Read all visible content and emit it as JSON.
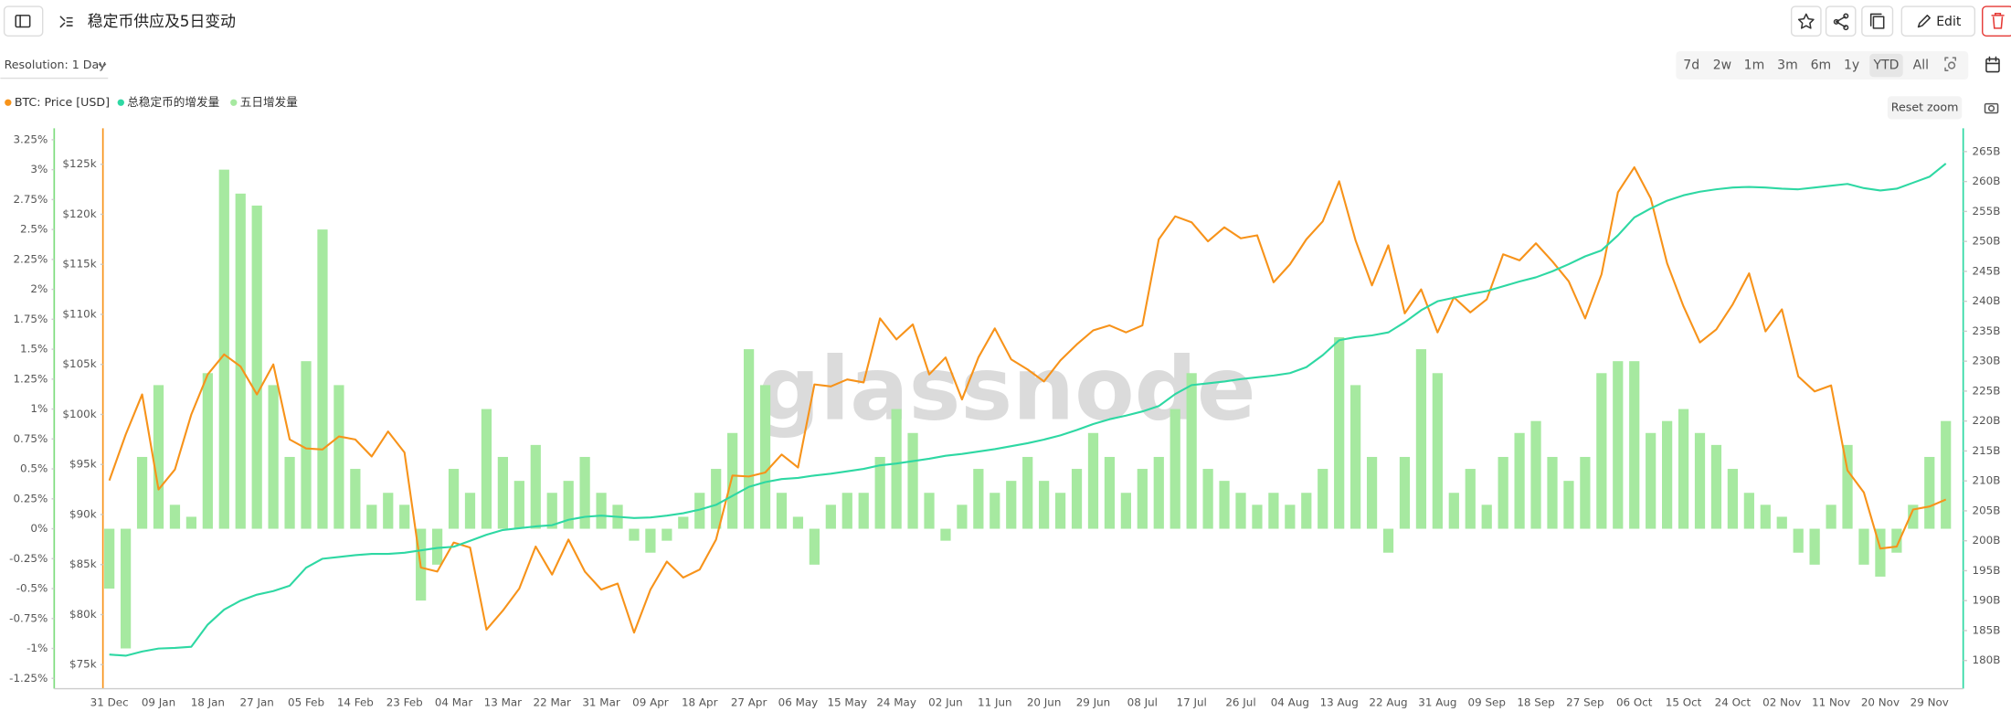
{
  "header": {
    "title": "稳定币供应及5日变动",
    "edit": "Edit",
    "resolution": "Resolution: 1 Day",
    "ranges": [
      "7d",
      "2w",
      "1m",
      "3m",
      "6m",
      "1y",
      "YTD",
      "All"
    ],
    "selected_range": 6,
    "reset_zoom": "Reset zoom",
    "watermark": "glassnode"
  },
  "chart_data": {
    "type": "combo",
    "grid": false,
    "categories": [
      "31 Dec",
      null,
      null,
      "09 Jan",
      null,
      null,
      "18 Jan",
      null,
      null,
      "27 Jan",
      null,
      null,
      "05 Feb",
      null,
      null,
      "14 Feb",
      null,
      null,
      "23 Feb",
      null,
      null,
      "04 Mar",
      null,
      null,
      "13 Mar",
      null,
      null,
      "22 Mar",
      null,
      null,
      "31 Mar",
      null,
      null,
      "09 Apr",
      null,
      null,
      "18 Apr",
      null,
      null,
      "27 Apr",
      null,
      null,
      "06 May",
      null,
      null,
      "15 May",
      null,
      null,
      "24 May",
      null,
      null,
      "02 Jun",
      null,
      null,
      "11 Jun",
      null,
      null,
      "20 Jun",
      null,
      null,
      "29 Jun",
      null,
      null,
      "08 Jul",
      null,
      null,
      "17 Jul",
      null,
      null,
      "26 Jul",
      null,
      null,
      "04 Aug",
      null,
      null,
      "13 Aug",
      null,
      null,
      "22 Aug",
      null,
      null,
      "31 Aug",
      null,
      null,
      "09 Sep",
      null,
      null,
      "18 Sep",
      null,
      null,
      "27 Sep",
      null,
      null,
      "06 Oct",
      null,
      null,
      "15 Oct",
      null,
      null,
      "24 Oct",
      null,
      null,
      "02 Nov",
      null,
      null,
      "11 Nov",
      null,
      null,
      "20 Nov",
      null,
      null,
      "29 Nov",
      null
    ],
    "ylim": [
      72.6,
      128.6
    ],
    "yticks": [
      {
        "value": 75,
        "label": "$75k"
      },
      {
        "value": 80,
        "label": "$80k"
      },
      {
        "value": 85,
        "label": "$85k"
      },
      {
        "value": 90,
        "label": "$90k"
      },
      {
        "value": 95,
        "label": "$95k"
      },
      {
        "value": 100,
        "label": "$100k"
      },
      {
        "value": 105,
        "label": "$105k"
      },
      {
        "value": 110,
        "label": "$110k"
      },
      {
        "value": 115,
        "label": "$115k"
      },
      {
        "value": 120,
        "label": "$120k"
      },
      {
        "value": 125,
        "label": "$125k"
      }
    ],
    "y2lim": [
      175.3,
      268.9
    ],
    "y2ticks": [
      {
        "value": 180,
        "label": "180B"
      },
      {
        "value": 185,
        "label": "185B"
      },
      {
        "value": 190,
        "label": "190B"
      },
      {
        "value": 195,
        "label": "195B"
      },
      {
        "value": 200,
        "label": "200B"
      },
      {
        "value": 205,
        "label": "205B"
      },
      {
        "value": 210,
        "label": "210B"
      },
      {
        "value": 215,
        "label": "215B"
      },
      {
        "value": 220,
        "label": "220B"
      },
      {
        "value": 225,
        "label": "225B"
      },
      {
        "value": 230,
        "label": "230B"
      },
      {
        "value": 235,
        "label": "235B"
      },
      {
        "value": 240,
        "label": "240B"
      },
      {
        "value": 245,
        "label": "245B"
      },
      {
        "value": 250,
        "label": "250B"
      },
      {
        "value": 255,
        "label": "255B"
      },
      {
        "value": 260,
        "label": "260B"
      },
      {
        "value": 265,
        "label": "265B"
      }
    ],
    "y3lim": [
      -1.336,
      3.346
    ],
    "y3ticks": [
      {
        "value": -1.25,
        "label": "-1.25%"
      },
      {
        "value": -1,
        "label": "-1%"
      },
      {
        "value": -0.75,
        "label": "-0.75%"
      },
      {
        "value": -0.5,
        "label": "-0.5%"
      },
      {
        "value": -0.25,
        "label": "-0.25%"
      },
      {
        "value": 0,
        "label": "0%"
      },
      {
        "value": 0.25,
        "label": "0.25%"
      },
      {
        "value": 0.5,
        "label": "0.5%"
      },
      {
        "value": 0.75,
        "label": "0.75%"
      },
      {
        "value": 1,
        "label": "1%"
      },
      {
        "value": 1.25,
        "label": "1.25%"
      },
      {
        "value": 1.5,
        "label": "1.5%"
      },
      {
        "value": 1.75,
        "label": "1.75%"
      },
      {
        "value": 2,
        "label": "2%"
      },
      {
        "value": 2.25,
        "label": "2.25%"
      },
      {
        "value": 2.5,
        "label": "2.5%"
      },
      {
        "value": 2.75,
        "label": "2.75%"
      },
      {
        "value": 3,
        "label": "3%"
      },
      {
        "value": 3.25,
        "label": "3.25%"
      }
    ],
    "series": [
      {
        "name": "BTC: Price [USD]",
        "type": "line",
        "axis": "y",
        "color": "#f7931a",
        "values": [
          93.4,
          98,
          102,
          92.5,
          94.5,
          100,
          104,
          106,
          104.8,
          102,
          105,
          97.5,
          96.6,
          96.5,
          97.8,
          97.5,
          95.8,
          98.3,
          96.2,
          84.7,
          84.3,
          87.2,
          86.7,
          78.5,
          80.4,
          82.6,
          86.8,
          84,
          87.5,
          84.3,
          82.5,
          83.1,
          78.2,
          82.5,
          85.3,
          83.7,
          84.5,
          87.5,
          93.9,
          93.8,
          94.2,
          96,
          94.7,
          103,
          102.8,
          103.5,
          103.2,
          109.6,
          107.5,
          109,
          104,
          105.7,
          101.5,
          105.7,
          108.6,
          105.5,
          104.5,
          103.3,
          105.4,
          107,
          108.4,
          108.9,
          108.2,
          108.9,
          117.5,
          119.8,
          119.2,
          117.3,
          118.7,
          117.6,
          117.9,
          113.2,
          115,
          117.5,
          119.3,
          123.3,
          117.4,
          112.9,
          116.9,
          110.1,
          112.5,
          108.2,
          111.7,
          110.2,
          111.5,
          116,
          115.4,
          117.1,
          115.3,
          113.3,
          109.6,
          114,
          122.2,
          124.7,
          121.6,
          115.1,
          110.8,
          107.2,
          108.5,
          111,
          114.1,
          108.3,
          110.5,
          103.8,
          102.3,
          102.9,
          94.4,
          92.2,
          86.6,
          86.8,
          90.5,
          90.8,
          91.5
        ]
      },
      {
        "name": "总稳定币的增发量",
        "type": "line",
        "axis": "y2",
        "color": "#2ed8a3",
        "values": [
          181,
          180.8,
          181.5,
          182,
          182.1,
          182.3,
          186,
          188.5,
          190,
          191,
          191.6,
          192.5,
          195.5,
          197,
          197.3,
          197.6,
          197.8,
          197.8,
          198,
          198.4,
          198.8,
          199,
          200,
          201,
          201.8,
          202.1,
          202.4,
          202.6,
          203.5,
          204,
          204.2,
          204,
          203.8,
          203.9,
          204.2,
          204.6,
          205.2,
          206,
          207.5,
          209,
          209.8,
          210.3,
          210.5,
          210.9,
          211.2,
          211.6,
          212,
          212.6,
          212.9,
          213.3,
          213.7,
          214.2,
          214.5,
          214.9,
          215.3,
          215.8,
          216.3,
          216.9,
          217.6,
          218.5,
          219.5,
          220.3,
          220.9,
          221.6,
          222.5,
          224.5,
          226,
          226.3,
          226.6,
          227,
          227.3,
          227.6,
          228,
          229,
          231,
          233.5,
          234,
          234.3,
          234.8,
          236.5,
          238.5,
          240,
          240.6,
          241.2,
          241.7,
          242.5,
          243.3,
          244,
          245,
          246.2,
          247.5,
          248.5,
          251,
          254,
          255.5,
          256.8,
          257.7,
          258.3,
          258.7,
          259,
          259.1,
          259,
          258.8,
          258.7,
          259,
          259.3,
          259.6,
          258.9,
          258.5,
          258.8,
          259.8,
          260.8,
          263
        ]
      },
      {
        "name": "五日增发量",
        "type": "bar",
        "axis": "y3",
        "color": "#a6e9a0",
        "values": [
          -0.5,
          -1,
          0.6,
          1.2,
          0.2,
          0.1,
          1.3,
          3,
          2.8,
          2.7,
          1.2,
          0.6,
          1.4,
          2.5,
          1.2,
          0.5,
          0.2,
          0.3,
          0.2,
          -0.6,
          -0.3,
          0.5,
          0.3,
          1,
          0.6,
          0.4,
          0.7,
          0.3,
          0.4,
          0.6,
          0.3,
          0.2,
          -0.1,
          -0.2,
          -0.1,
          0.1,
          0.3,
          0.5,
          0.8,
          1.5,
          1.2,
          0.3,
          0.1,
          -0.3,
          0.2,
          0.3,
          0.3,
          0.6,
          1,
          0.8,
          0.3,
          -0.1,
          0.2,
          0.5,
          0.3,
          0.4,
          0.6,
          0.4,
          0.3,
          0.5,
          0.8,
          0.6,
          0.3,
          0.5,
          0.6,
          1,
          1.3,
          0.5,
          0.4,
          0.3,
          0.2,
          0.3,
          0.2,
          0.3,
          0.5,
          1.6,
          1.2,
          0.6,
          -0.2,
          0.6,
          1.5,
          1.3,
          0.3,
          0.5,
          0.2,
          0.6,
          0.8,
          0.9,
          0.6,
          0.4,
          0.6,
          1.3,
          1.4,
          1.4,
          0.8,
          0.9,
          1,
          0.8,
          0.7,
          0.5,
          0.3,
          0.2,
          0.1,
          -0.2,
          -0.3,
          0.2,
          0.7,
          -0.3,
          -0.4,
          -0.2,
          0.2,
          0.6,
          0.9
        ]
      }
    ]
  }
}
